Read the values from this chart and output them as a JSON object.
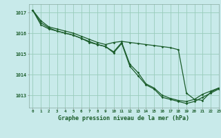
{
  "title": "Graphe pression niveau de la mer (hPa)",
  "background_color": "#c8eaea",
  "grid_color": "#99ccbb",
  "line_color": "#1a5c2a",
  "xlim": [
    -0.5,
    23
  ],
  "ylim": [
    1012.4,
    1017.4
  ],
  "yticks": [
    1013,
    1014,
    1015,
    1016,
    1017
  ],
  "xticks": [
    0,
    1,
    2,
    3,
    4,
    5,
    6,
    7,
    8,
    9,
    10,
    11,
    12,
    13,
    14,
    15,
    16,
    17,
    18,
    19,
    20,
    21,
    22,
    23
  ],
  "series1": [
    1017.1,
    1016.6,
    1016.3,
    1016.2,
    1016.1,
    1016.0,
    1015.85,
    1015.7,
    1015.55,
    1015.45,
    1015.55,
    1015.6,
    1015.55,
    1015.5,
    1015.45,
    1015.4,
    1015.35,
    1015.3,
    1015.2,
    1013.1,
    1012.8,
    1012.75,
    1013.15,
    1013.35
  ],
  "series2": [
    1017.1,
    1016.5,
    1016.25,
    1016.1,
    1016.0,
    1015.9,
    1015.75,
    1015.6,
    1015.45,
    1015.35,
    1015.1,
    1015.55,
    1014.5,
    1014.1,
    1013.55,
    1013.35,
    1013.0,
    1012.85,
    1012.75,
    1012.7,
    1012.8,
    1013.05,
    1013.2,
    1013.35
  ],
  "series3": [
    1017.1,
    1016.4,
    1016.2,
    1016.1,
    1016.0,
    1015.9,
    1015.75,
    1015.55,
    1015.45,
    1015.35,
    1015.05,
    1015.5,
    1014.4,
    1013.95,
    1013.5,
    1013.3,
    1012.9,
    1012.8,
    1012.7,
    1012.6,
    1012.7,
    1012.9,
    1013.1,
    1013.3
  ]
}
